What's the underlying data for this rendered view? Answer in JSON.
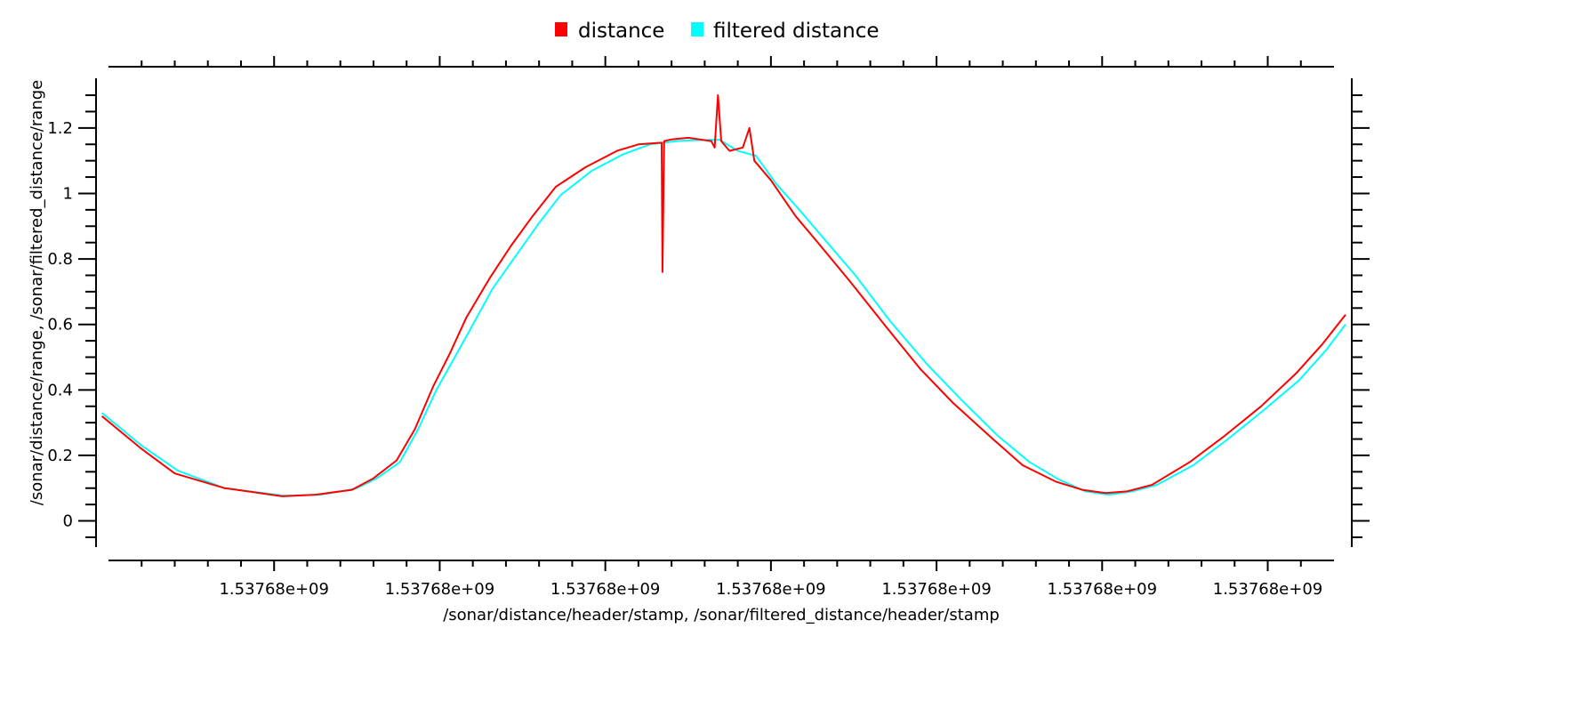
{
  "chart_data": {
    "type": "line",
    "title": "",
    "xlabel": "/sonar/distance/header/stamp, /sonar/filtered_distance/header/stamp",
    "ylabel": "/sonar/distance/range, /sonar/filtered_distance/range",
    "xlim": [
      0,
      74
    ],
    "ylim": [
      -0.08,
      1.33
    ],
    "x_ticks": [
      10,
      20,
      30,
      40,
      50,
      60,
      70
    ],
    "x_tick_labels": [
      "1.53768e+09",
      "1.53768e+09",
      "1.53768e+09",
      "1.53768e+09",
      "1.53768e+09",
      "1.53768e+09",
      "1.53768e+09"
    ],
    "y_ticks": [
      0,
      0.2,
      0.4,
      0.6,
      0.8,
      1,
      1.2
    ],
    "y_tick_labels": [
      "0",
      "0.2",
      "0.4",
      "0.6",
      "0.8",
      "1",
      "1.2"
    ],
    "grid": false,
    "legend_position": "top-center",
    "series": [
      {
        "name": "distance",
        "color": "#ff0000",
        "points": [
          [
            -0.4,
            0.32
          ],
          [
            2,
            0.22
          ],
          [
            4,
            0.145
          ],
          [
            7,
            0.1
          ],
          [
            10.5,
            0.075
          ],
          [
            12.5,
            0.08
          ],
          [
            14.7,
            0.095
          ],
          [
            16,
            0.13
          ],
          [
            17.4,
            0.185
          ],
          [
            18.5,
            0.28
          ],
          [
            19.6,
            0.41
          ],
          [
            20.6,
            0.51
          ],
          [
            21.6,
            0.62
          ],
          [
            23,
            0.74
          ],
          [
            24.3,
            0.84
          ],
          [
            25.6,
            0.93
          ],
          [
            27,
            1.02
          ],
          [
            28.8,
            1.08
          ],
          [
            30.7,
            1.13
          ],
          [
            32,
            1.15
          ],
          [
            33.4,
            1.155
          ],
          [
            33.45,
            0.76
          ],
          [
            33.55,
            1.16
          ],
          [
            34,
            1.165
          ],
          [
            35,
            1.17
          ],
          [
            36.4,
            1.16
          ],
          [
            36.6,
            1.14
          ],
          [
            36.8,
            1.3
          ],
          [
            37,
            1.16
          ],
          [
            37.5,
            1.13
          ],
          [
            38.3,
            1.14
          ],
          [
            38.7,
            1.2
          ],
          [
            39,
            1.1
          ],
          [
            40,
            1.04
          ],
          [
            41.5,
            0.93
          ],
          [
            43,
            0.84
          ],
          [
            44.8,
            0.73
          ],
          [
            47,
            0.59
          ],
          [
            49,
            0.465
          ],
          [
            51,
            0.36
          ],
          [
            53.4,
            0.25
          ],
          [
            55.2,
            0.17
          ],
          [
            57.2,
            0.12
          ],
          [
            58.8,
            0.095
          ],
          [
            60.2,
            0.085
          ],
          [
            61.5,
            0.09
          ],
          [
            63,
            0.11
          ],
          [
            65.3,
            0.18
          ],
          [
            67.4,
            0.26
          ],
          [
            69.6,
            0.35
          ],
          [
            71.7,
            0.45
          ],
          [
            73.3,
            0.54
          ],
          [
            74.7,
            0.63
          ]
        ]
      },
      {
        "name": "filtered distance",
        "color": "#00ffff",
        "points": [
          [
            -0.4,
            0.33
          ],
          [
            2,
            0.23
          ],
          [
            4.2,
            0.153
          ],
          [
            7,
            0.1
          ],
          [
            10.6,
            0.077
          ],
          [
            12.8,
            0.08
          ],
          [
            14.9,
            0.098
          ],
          [
            16.2,
            0.13
          ],
          [
            17.6,
            0.18
          ],
          [
            18.7,
            0.28
          ],
          [
            19.8,
            0.4
          ],
          [
            20.8,
            0.49
          ],
          [
            21.9,
            0.59
          ],
          [
            23.2,
            0.71
          ],
          [
            24.6,
            0.81
          ],
          [
            26,
            0.91
          ],
          [
            27.3,
            0.995
          ],
          [
            29.2,
            1.07
          ],
          [
            31.1,
            1.12
          ],
          [
            32.7,
            1.15
          ],
          [
            34.3,
            1.16
          ],
          [
            35.6,
            1.163
          ],
          [
            36.9,
            1.164
          ],
          [
            38,
            1.13
          ],
          [
            39.1,
            1.115
          ],
          [
            40.3,
            1.03
          ],
          [
            41.8,
            0.945
          ],
          [
            43.4,
            0.85
          ],
          [
            45.1,
            0.75
          ],
          [
            47.2,
            0.61
          ],
          [
            49.4,
            0.48
          ],
          [
            51.5,
            0.37
          ],
          [
            53.7,
            0.26
          ],
          [
            55.6,
            0.18
          ],
          [
            57.4,
            0.126
          ],
          [
            59,
            0.09
          ],
          [
            60.4,
            0.08
          ],
          [
            61.8,
            0.09
          ],
          [
            63.3,
            0.11
          ],
          [
            65.5,
            0.17
          ],
          [
            67.6,
            0.25
          ],
          [
            69.8,
            0.34
          ],
          [
            71.9,
            0.43
          ],
          [
            73.5,
            0.52
          ],
          [
            74.7,
            0.6
          ]
        ]
      }
    ]
  }
}
